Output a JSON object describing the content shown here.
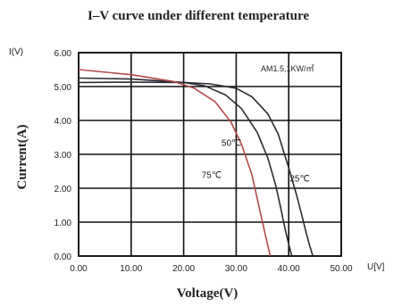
{
  "chart_data": {
    "type": "line",
    "title": "I–V curve under different temperature",
    "xlabel": "Voltage(V)",
    "ylabel": "Current(A)",
    "x_unit": "U[V]",
    "y_unit": "I(V)",
    "annotation": "AM1.5,1KW/㎡",
    "xlim": [
      0,
      50
    ],
    "ylim": [
      0,
      6
    ],
    "x_ticks": [
      "0.00",
      "10.00",
      "20.00",
      "30.00",
      "40.00",
      "50.00"
    ],
    "y_ticks": [
      "0.00",
      "1.00",
      "2.00",
      "3.00",
      "4.00",
      "5.00",
      "6.00"
    ],
    "grid": true,
    "series": [
      {
        "name": "25℃",
        "color": "#2b2b33",
        "x": [
          0,
          10,
          20,
          25,
          30,
          33,
          36,
          38,
          40,
          41.5,
          42.5,
          43.3,
          44,
          44.6
        ],
        "y": [
          5.12,
          5.13,
          5.12,
          5.08,
          4.95,
          4.7,
          4.2,
          3.6,
          2.6,
          1.8,
          1.2,
          0.7,
          0.3,
          0
        ]
      },
      {
        "name": "50℃",
        "color": "#2b2b33",
        "x": [
          0,
          10,
          20,
          24,
          28,
          31,
          34,
          36,
          37.5,
          38.5,
          39.3,
          40,
          40.6
        ],
        "y": [
          5.25,
          5.22,
          5.12,
          5.02,
          4.75,
          4.35,
          3.65,
          2.9,
          2.1,
          1.4,
          0.8,
          0.35,
          0
        ]
      },
      {
        "name": "75℃",
        "color": "#b34a4a",
        "x": [
          0,
          10,
          18,
          22,
          26,
          29,
          31,
          33,
          34,
          35,
          35.8,
          36.5
        ],
        "y": [
          5.5,
          5.35,
          5.15,
          4.95,
          4.55,
          3.95,
          3.3,
          2.4,
          1.7,
          1.0,
          0.45,
          0
        ]
      }
    ]
  }
}
